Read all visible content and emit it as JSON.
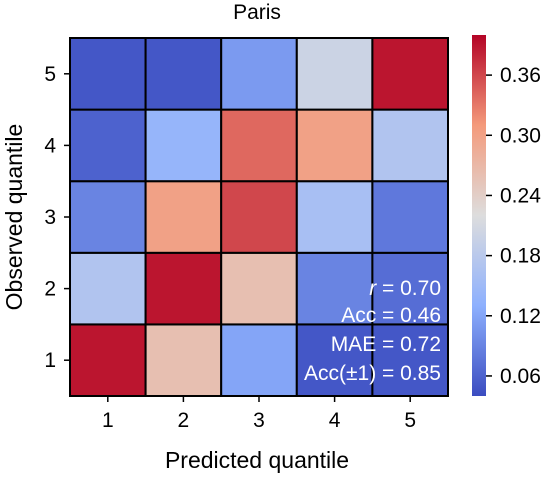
{
  "chart_data": {
    "type": "heatmap",
    "title": "Paris",
    "xlabel": "Predicted quantile",
    "ylabel": "Observed quantile",
    "x_categories": [
      "1",
      "2",
      "3",
      "4",
      "5"
    ],
    "y_categories": [
      "1",
      "2",
      "3",
      "4",
      "5"
    ],
    "values": [
      [
        0.39,
        0.26,
        0.12,
        0.05,
        0.05
      ],
      [
        0.17,
        0.39,
        0.26,
        0.09,
        0.07
      ],
      [
        0.09,
        0.3,
        0.36,
        0.16,
        0.08
      ],
      [
        0.06,
        0.14,
        0.34,
        0.3,
        0.17
      ],
      [
        0.05,
        0.05,
        0.11,
        0.2,
        0.39
      ]
    ],
    "colorbar": {
      "min": 0.04,
      "max": 0.4,
      "ticks": [
        0.06,
        0.12,
        0.18,
        0.24,
        0.3,
        0.36
      ],
      "tick_labels": [
        "0.06",
        "0.12",
        "0.18",
        "0.24",
        "0.30",
        "0.36"
      ],
      "colormap": [
        "#3b4cc0",
        "#8db0fe",
        "#dddddd",
        "#f49a7b",
        "#b40426"
      ]
    },
    "annotations": {
      "r_symbol": "r",
      "r_value": " = 0.70",
      "acc": "Acc = 0.46",
      "mae": "MAE = 0.72",
      "acc_pm1": "Acc(±1) = 0.85"
    }
  }
}
